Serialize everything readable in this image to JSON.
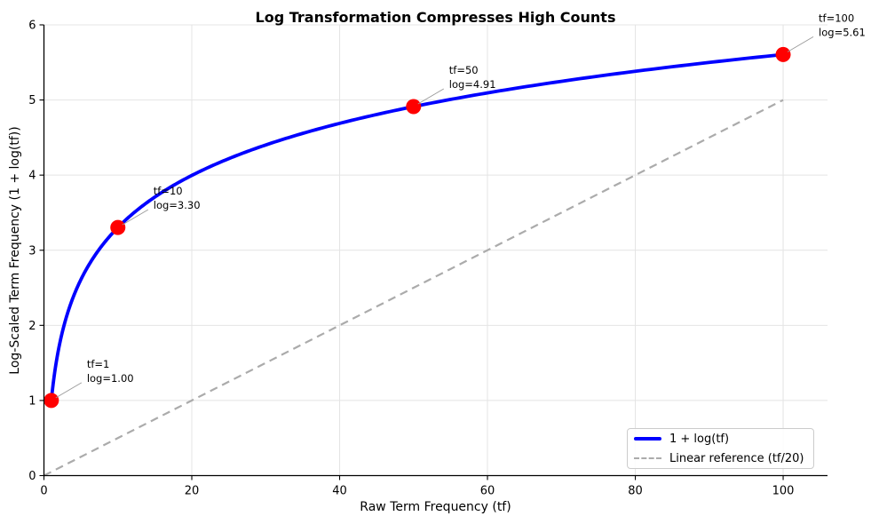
{
  "chart_data": {
    "type": "line",
    "title": "Log Transformation Compresses High Counts",
    "xlabel": "Raw Term Frequency (tf)",
    "ylabel": "Log-Scaled Term Frequency (1 + log(tf))",
    "xlim": [
      0,
      106
    ],
    "ylim": [
      0,
      6
    ],
    "x_ticks": [
      0,
      20,
      40,
      60,
      80,
      100
    ],
    "y_ticks": [
      0,
      1,
      2,
      3,
      4,
      5,
      6
    ],
    "grid": true,
    "colors": {
      "curve": "#0000ff",
      "marker": "#ff0000",
      "reference": "#ababab",
      "grid": "#e4e4e4",
      "leader": "#999999",
      "spine": "#000000"
    },
    "series": [
      {
        "name": "1 + log(tf)",
        "style": "solid",
        "color": "#0000ff",
        "formula": "y = 1 + ln(tf)",
        "x_range": [
          1,
          100
        ],
        "sample_points": [
          [
            1,
            1.0
          ],
          [
            2,
            1.69
          ],
          [
            5,
            2.61
          ],
          [
            10,
            3.3
          ],
          [
            20,
            4.0
          ],
          [
            30,
            4.4
          ],
          [
            50,
            4.91
          ],
          [
            70,
            5.25
          ],
          [
            100,
            5.61
          ]
        ]
      },
      {
        "name": "Linear reference (tf/20)",
        "style": "dashed",
        "color": "#ababab",
        "formula": "y = tf / 20",
        "points": [
          [
            0,
            0
          ],
          [
            100,
            5
          ]
        ]
      }
    ],
    "markers": {
      "color": "#ff0000",
      "points": [
        [
          1,
          1.0
        ],
        [
          10,
          3.3026
        ],
        [
          50,
          4.912
        ],
        [
          100,
          5.6052
        ]
      ]
    },
    "annotations": [
      {
        "x": 1,
        "y": 1.0,
        "lines": [
          "tf=1",
          "log=1.00"
        ]
      },
      {
        "x": 10,
        "y": 3.3026,
        "lines": [
          "tf=10",
          "log=3.30"
        ]
      },
      {
        "x": 50,
        "y": 4.912,
        "lines": [
          "tf=50",
          "log=4.91"
        ]
      },
      {
        "x": 100,
        "y": 5.6052,
        "lines": [
          "tf=100",
          "log=5.61"
        ]
      }
    ],
    "legend": {
      "position": "lower right",
      "entries": [
        {
          "label": "1 + log(tf)",
          "style": "solid",
          "color": "#0000ff"
        },
        {
          "label": "Linear reference (tf/20)",
          "style": "dashed",
          "color": "#ababab"
        }
      ]
    }
  }
}
